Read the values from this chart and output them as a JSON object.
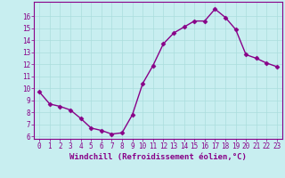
{
  "x": [
    0,
    1,
    2,
    3,
    4,
    5,
    6,
    7,
    8,
    9,
    10,
    11,
    12,
    13,
    14,
    15,
    16,
    17,
    18,
    19,
    20,
    21,
    22,
    23
  ],
  "y": [
    9.7,
    8.7,
    8.5,
    8.2,
    7.5,
    6.7,
    6.5,
    6.2,
    6.3,
    7.8,
    10.4,
    11.9,
    13.7,
    14.6,
    15.1,
    15.6,
    15.6,
    16.6,
    15.9,
    14.9,
    12.8,
    12.5,
    12.1,
    11.8
  ],
  "line_color": "#880088",
  "marker": "D",
  "marker_size": 2.5,
  "bg_color": "#c8eef0",
  "grid_color": "#aadddd",
  "xlabel": "Windchill (Refroidissement éolien,°C)",
  "xlabel_fontsize": 6.5,
  "yticks": [
    6,
    7,
    8,
    9,
    10,
    11,
    12,
    13,
    14,
    15,
    16
  ],
  "xticks": [
    0,
    1,
    2,
    3,
    4,
    5,
    6,
    7,
    8,
    9,
    10,
    11,
    12,
    13,
    14,
    15,
    16,
    17,
    18,
    19,
    20,
    21,
    22,
    23
  ],
  "ylim": [
    5.8,
    17.2
  ],
  "xlim": [
    -0.5,
    23.5
  ],
  "tick_color": "#880088",
  "tick_fontsize": 5.5,
  "line_width": 1.0,
  "axis_color": "#880088"
}
